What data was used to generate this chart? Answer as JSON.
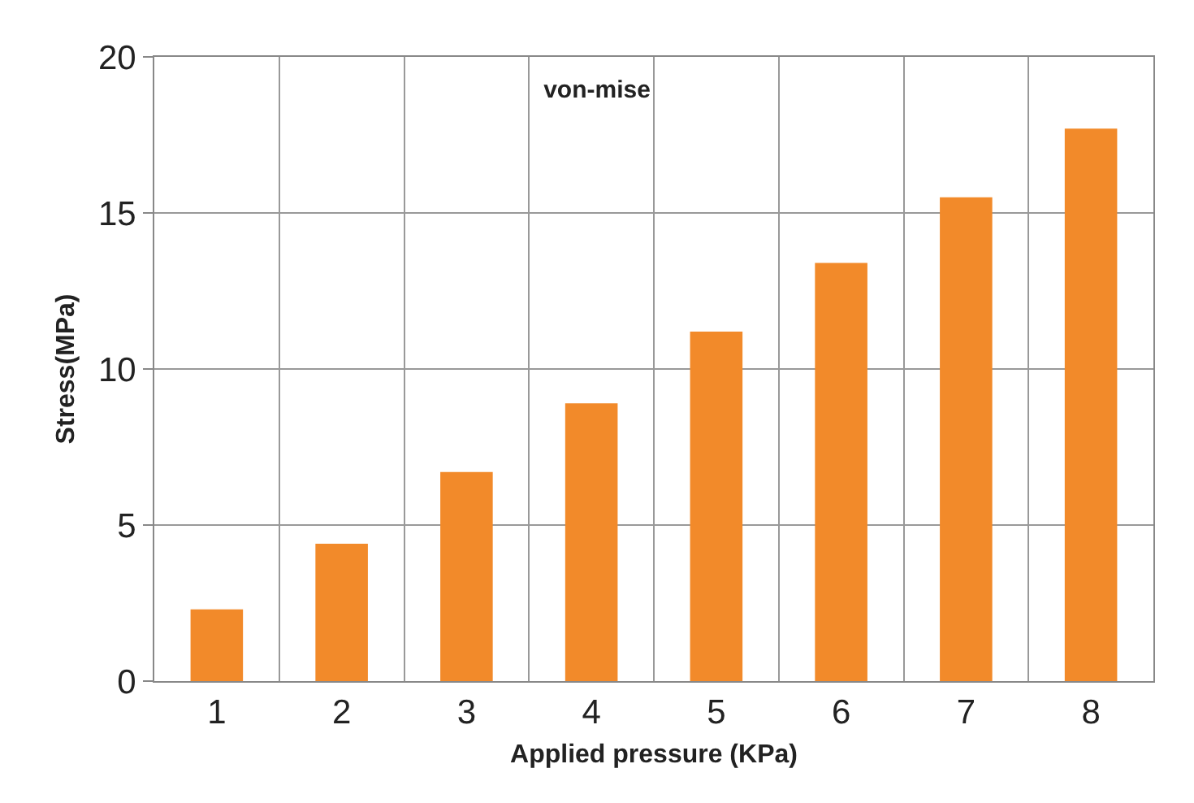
{
  "chart_data": {
    "type": "bar",
    "title": "von-mise",
    "xlabel": "Applied pressure (KPa)",
    "ylabel": "Stress(MPa)",
    "categories": [
      "1",
      "2",
      "3",
      "4",
      "5",
      "6",
      "7",
      "8"
    ],
    "values": [
      2.3,
      4.4,
      6.7,
      8.9,
      11.2,
      13.4,
      15.5,
      17.7
    ],
    "color": "#f28a2a",
    "ylim": [
      0,
      20
    ],
    "yticks": [
      0,
      5,
      10,
      15,
      20
    ],
    "grid": true,
    "legend": false
  }
}
